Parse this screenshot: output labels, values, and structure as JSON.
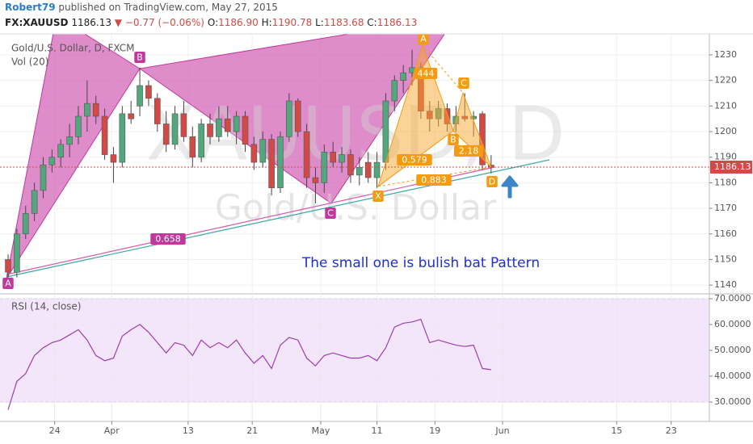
{
  "header": {
    "user": "Robert79",
    "published": "published on TradingView.com, May 27, 2015",
    "symbol": "FX:XAUUSD",
    "price": "1186.13",
    "arrow": "▼",
    "change": "−0.77 (−0.06%)",
    "ohlc": [
      {
        "key": "O:",
        "value": "1186.90"
      },
      {
        "key": "H:",
        "value": "1190.78"
      },
      {
        "key": "L:",
        "value": "1183.68"
      },
      {
        "key": "C:",
        "value": "1186.13"
      }
    ]
  },
  "chart_data": [
    {
      "type": "candlestick",
      "title": "Gold/U.S. Dollar, D, FXCM",
      "subtitle": "Vol (20)",
      "watermark": [
        "XAUUSD, D",
        "Gold/U.S. Dollar"
      ],
      "up_color": "#53a77d",
      "down_color": "#d24a45",
      "grid": true,
      "xlim": [
        -0.92,
        79.85
      ],
      "xticks": [
        {
          "value": 5.3,
          "label": "24"
        },
        {
          "value": 11.8,
          "label": "Apr"
        },
        {
          "value": 20.5,
          "label": "13"
        },
        {
          "value": 27.8,
          "label": "21"
        },
        {
          "value": 35.6,
          "label": "May"
        },
        {
          "value": 42.0,
          "label": "11"
        },
        {
          "value": 48.6,
          "label": "19"
        },
        {
          "value": 56.3,
          "label": "Jun"
        },
        {
          "value": 69.3,
          "label": "15"
        },
        {
          "value": 75.5,
          "label": "23"
        }
      ],
      "ylim": [
        1137.2,
        1238.2
      ],
      "yticks": [
        1140,
        1150,
        1160,
        1170,
        1180,
        1190,
        1200,
        1210,
        1220,
        1230
      ],
      "open": [
        1150,
        1145,
        1160,
        1168,
        1177,
        1187,
        1190,
        1195,
        1198,
        1206,
        1211,
        1206,
        1191,
        1188,
        1207,
        1210,
        1218,
        1213,
        1203,
        1195,
        1207,
        1198,
        1190,
        1203,
        1198,
        1205,
        1200,
        1206,
        1195,
        1188,
        1197,
        1178,
        1198,
        1212,
        1200,
        1182,
        1180,
        1192,
        1188,
        1191,
        1183,
        1188,
        1182,
        1188,
        1212,
        1220,
        1223,
        1225,
        1208,
        1205,
        1209,
        1203,
        1206,
        1205,
        1207,
        1186.9
      ],
      "high": [
        1152,
        1162,
        1171,
        1180,
        1190,
        1193,
        1197,
        1203,
        1210,
        1220,
        1214,
        1209,
        1194,
        1210,
        1212,
        1225,
        1220,
        1215,
        1208,
        1210,
        1212,
        1202,
        1205,
        1207,
        1210,
        1210,
        1208,
        1208,
        1198,
        1200,
        1199,
        1200,
        1215,
        1213,
        1203,
        1186,
        1195,
        1196,
        1194,
        1193,
        1190,
        1192,
        1192,
        1215,
        1222,
        1226,
        1232,
        1227,
        1212,
        1212,
        1211,
        1210,
        1215,
        1208,
        1208,
        1190.78
      ],
      "low": [
        1141,
        1143,
        1158,
        1165,
        1174,
        1184,
        1186,
        1190,
        1195,
        1200,
        1203,
        1189,
        1180,
        1186,
        1203,
        1206,
        1210,
        1200,
        1192,
        1193,
        1196,
        1186,
        1188,
        1195,
        1196,
        1198,
        1195,
        1192,
        1185,
        1186,
        1175,
        1176,
        1196,
        1198,
        1178,
        1172,
        1176,
        1186,
        1184,
        1180,
        1179,
        1180,
        1178,
        1185,
        1208,
        1215,
        1218,
        1205,
        1200,
        1202,
        1200,
        1200,
        1204,
        1198,
        1185,
        1183.68
      ],
      "close": [
        1145,
        1160,
        1168,
        1177,
        1187,
        1190,
        1195,
        1198,
        1206,
        1211,
        1206,
        1191,
        1188,
        1207,
        1205,
        1218,
        1213,
        1203,
        1195,
        1207,
        1198,
        1190,
        1203,
        1198,
        1205,
        1200,
        1206,
        1195,
        1188,
        1197,
        1178,
        1198,
        1212,
        1200,
        1182,
        1180,
        1192,
        1188,
        1191,
        1183,
        1186,
        1182,
        1188,
        1212,
        1220,
        1223,
        1225,
        1208,
        1205,
        1209,
        1203,
        1206,
        1205,
        1206,
        1187,
        1186.13
      ],
      "price_line_color": "#d24a45",
      "pattern_labels": [
        "A",
        "B",
        "C",
        "0.658",
        "A",
        "444",
        "C",
        "B",
        "2.18",
        "0.579",
        "0.883",
        "X",
        "D"
      ],
      "annotations": [
        "The small one is bulish bat Pattern"
      ]
    },
    {
      "type": "line",
      "title": "RSI (14, close)",
      "color": "#9b3fae",
      "band_color": "#f3e6fa",
      "grid": true,
      "ylim": [
        22.5,
        71.25
      ],
      "yticks": [
        {
          "value": 30,
          "label": "30.0000"
        },
        {
          "value": 40,
          "label": "40.0000"
        },
        {
          "value": 50,
          "label": "50.0000"
        },
        {
          "value": 60,
          "label": "60.0000"
        },
        {
          "value": 70,
          "label": "70.0000"
        }
      ],
      "band": [
        30,
        70
      ],
      "values": [
        27,
        38,
        41,
        48,
        51,
        53,
        54,
        56,
        58,
        54,
        48,
        46,
        47,
        55.5,
        58,
        60,
        57,
        53,
        49,
        53,
        52,
        48,
        54,
        51,
        53,
        51,
        54,
        49,
        45,
        48,
        43,
        52,
        55,
        54,
        47,
        44,
        48,
        49,
        48,
        47,
        47,
        48,
        46,
        51,
        59,
        60.5,
        61,
        62,
        53,
        54,
        53,
        52,
        51.5,
        52,
        43,
        42.5
      ]
    }
  ]
}
